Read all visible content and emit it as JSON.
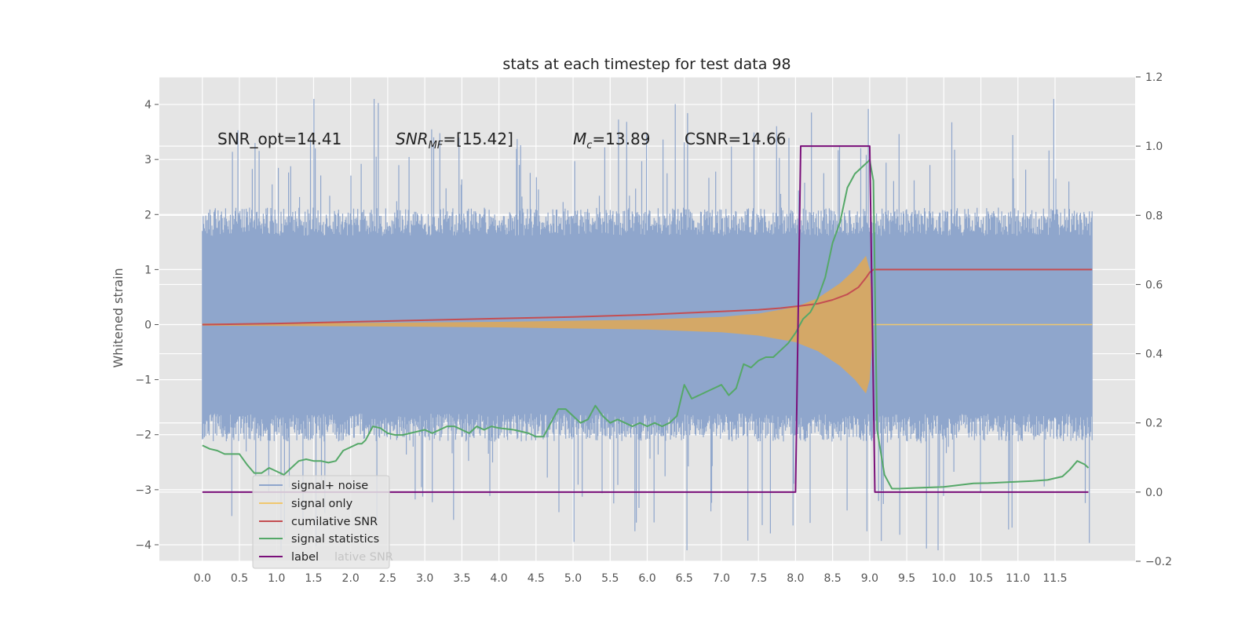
{
  "chart_data": {
    "type": "line",
    "title": "stats at each timestep for test data 98",
    "ylabel": "Whitened strain",
    "xlabel": "",
    "xlim": [
      -0.58,
      12.58
    ],
    "ylim": [
      -4.3,
      4.5
    ],
    "y2lim": [
      -0.2,
      1.2
    ],
    "grid": true,
    "legend_position": "lower-left",
    "x_ticks": [
      "0.0",
      "0.5",
      "1.0",
      "1.5",
      "2.0",
      "2.5",
      "3.0",
      "3.5",
      "4.0",
      "4.5",
      "5.0",
      "5.5",
      "6.0",
      "6.5",
      "7.0",
      "7.5",
      "8.0",
      "8.5",
      "9.0",
      "9.5",
      "10.0",
      "10.5",
      "11.0",
      "11.5"
    ],
    "y_ticks": [
      "4",
      "3",
      "2",
      "1",
      "0",
      "−1",
      "−2",
      "−3",
      "−4"
    ],
    "y2_ticks": [
      "1.2",
      "1.0",
      "0.8",
      "0.6",
      "0.4",
      "0.2",
      "0.0",
      "−0.2"
    ],
    "annotations": {
      "snr_opt": "SNR_opt=14.41",
      "snr_mf_main": "SNR",
      "snr_mf_sub": "MF",
      "snr_mf_value": "=[15.42]",
      "mc_main": "M",
      "mc_sub": "c",
      "mc_value": "=13.89",
      "csnr": "CSNR=14.66"
    },
    "legend": [
      {
        "label": "signal+ noise",
        "color": "#8fa6cc"
      },
      {
        "label": "signal only",
        "color": "#f0c76e"
      },
      {
        "label": "cumilative SNR",
        "color": "#c44e52"
      },
      {
        "label": "signal statistics",
        "color": "#55a868"
      },
      {
        "label": "label",
        "color": "#7a0f7a"
      }
    ],
    "legend_ghost_text": "lative SNR",
    "series": [
      {
        "name": "signal+ noise",
        "axis": "left",
        "kind": "noise",
        "x_range": [
          0.0,
          12.0
        ],
        "amplitude_typical": 1.7,
        "amplitude_max": 4.1,
        "color": "#8fa6cc"
      },
      {
        "name": "signal only",
        "axis": "left",
        "kind": "chirp-envelope",
        "envelope": {
          "x": [
            0.0,
            2.0,
            4.0,
            6.0,
            7.0,
            7.5,
            8.0,
            8.3,
            8.6,
            8.8,
            8.95,
            9.0,
            9.05
          ],
          "y": [
            0.02,
            0.03,
            0.05,
            0.09,
            0.14,
            0.2,
            0.32,
            0.48,
            0.75,
            1.0,
            1.25,
            1.0,
            0.0
          ]
        },
        "color": "#f0c76e"
      },
      {
        "name": "cumilative SNR",
        "axis": "left",
        "x": [
          0.0,
          1.0,
          2.0,
          3.0,
          4.0,
          5.0,
          6.0,
          6.5,
          7.0,
          7.5,
          7.8,
          8.0,
          8.3,
          8.5,
          8.7,
          8.85,
          8.95,
          9.0,
          9.05,
          12.0
        ],
        "y": [
          0.0,
          0.02,
          0.05,
          0.08,
          0.11,
          0.14,
          0.18,
          0.21,
          0.24,
          0.27,
          0.3,
          0.33,
          0.38,
          0.45,
          0.55,
          0.68,
          0.85,
          0.95,
          1.0,
          1.0
        ],
        "color": "#c44e52"
      },
      {
        "name": "signal statistics",
        "axis": "right",
        "x": [
          0.0,
          0.1,
          0.2,
          0.3,
          0.5,
          0.6,
          0.7,
          0.8,
          0.9,
          1.0,
          1.1,
          1.2,
          1.3,
          1.4,
          1.5,
          1.6,
          1.7,
          1.8,
          1.9,
          2.0,
          2.1,
          2.15,
          2.2,
          2.3,
          2.4,
          2.5,
          2.6,
          2.7,
          2.8,
          2.9,
          3.0,
          3.1,
          3.2,
          3.3,
          3.4,
          3.5,
          3.6,
          3.7,
          3.8,
          3.9,
          4.0,
          4.2,
          4.4,
          4.5,
          4.6,
          4.7,
          4.8,
          4.9,
          5.0,
          5.1,
          5.2,
          5.3,
          5.4,
          5.5,
          5.6,
          5.7,
          5.8,
          5.9,
          6.0,
          6.1,
          6.2,
          6.3,
          6.4,
          6.5,
          6.6,
          6.7,
          6.8,
          6.9,
          7.0,
          7.1,
          7.2,
          7.3,
          7.4,
          7.5,
          7.6,
          7.7,
          7.8,
          7.9,
          8.0,
          8.1,
          8.2,
          8.3,
          8.4,
          8.5,
          8.6,
          8.7,
          8.8,
          8.9,
          9.0,
          9.05,
          9.1,
          9.2,
          9.3,
          9.4,
          9.6,
          10.0,
          10.2,
          10.4,
          10.6,
          10.8,
          11.0,
          11.2,
          11.4,
          11.6,
          11.7,
          11.8,
          11.9,
          11.95
        ],
        "y": [
          0.135,
          0.125,
          0.12,
          0.11,
          0.11,
          0.08,
          0.055,
          0.055,
          0.07,
          0.06,
          0.05,
          0.07,
          0.09,
          0.095,
          0.09,
          0.09,
          0.085,
          0.09,
          0.12,
          0.13,
          0.14,
          0.14,
          0.15,
          0.19,
          0.185,
          0.17,
          0.165,
          0.165,
          0.17,
          0.175,
          0.18,
          0.17,
          0.18,
          0.19,
          0.19,
          0.18,
          0.17,
          0.19,
          0.18,
          0.19,
          0.185,
          0.18,
          0.17,
          0.16,
          0.16,
          0.2,
          0.24,
          0.24,
          0.22,
          0.2,
          0.21,
          0.25,
          0.22,
          0.2,
          0.21,
          0.2,
          0.19,
          0.2,
          0.19,
          0.2,
          0.19,
          0.2,
          0.22,
          0.31,
          0.27,
          0.28,
          0.29,
          0.3,
          0.31,
          0.28,
          0.3,
          0.37,
          0.36,
          0.38,
          0.39,
          0.39,
          0.41,
          0.43,
          0.46,
          0.5,
          0.52,
          0.56,
          0.62,
          0.72,
          0.78,
          0.88,
          0.92,
          0.94,
          0.96,
          0.9,
          0.18,
          0.05,
          0.01,
          0.01,
          0.012,
          0.015,
          0.02,
          0.025,
          0.026,
          0.028,
          0.03,
          0.032,
          0.035,
          0.045,
          0.065,
          0.09,
          0.08,
          0.07
        ],
        "color": "#55a868"
      },
      {
        "name": "label",
        "axis": "right",
        "x": [
          0.0,
          8.0,
          8.07,
          9.0,
          9.07,
          11.95
        ],
        "y": [
          0.0,
          0.0,
          1.0,
          1.0,
          0.0,
          0.0
        ],
        "color": "#7a0f7a"
      }
    ]
  }
}
